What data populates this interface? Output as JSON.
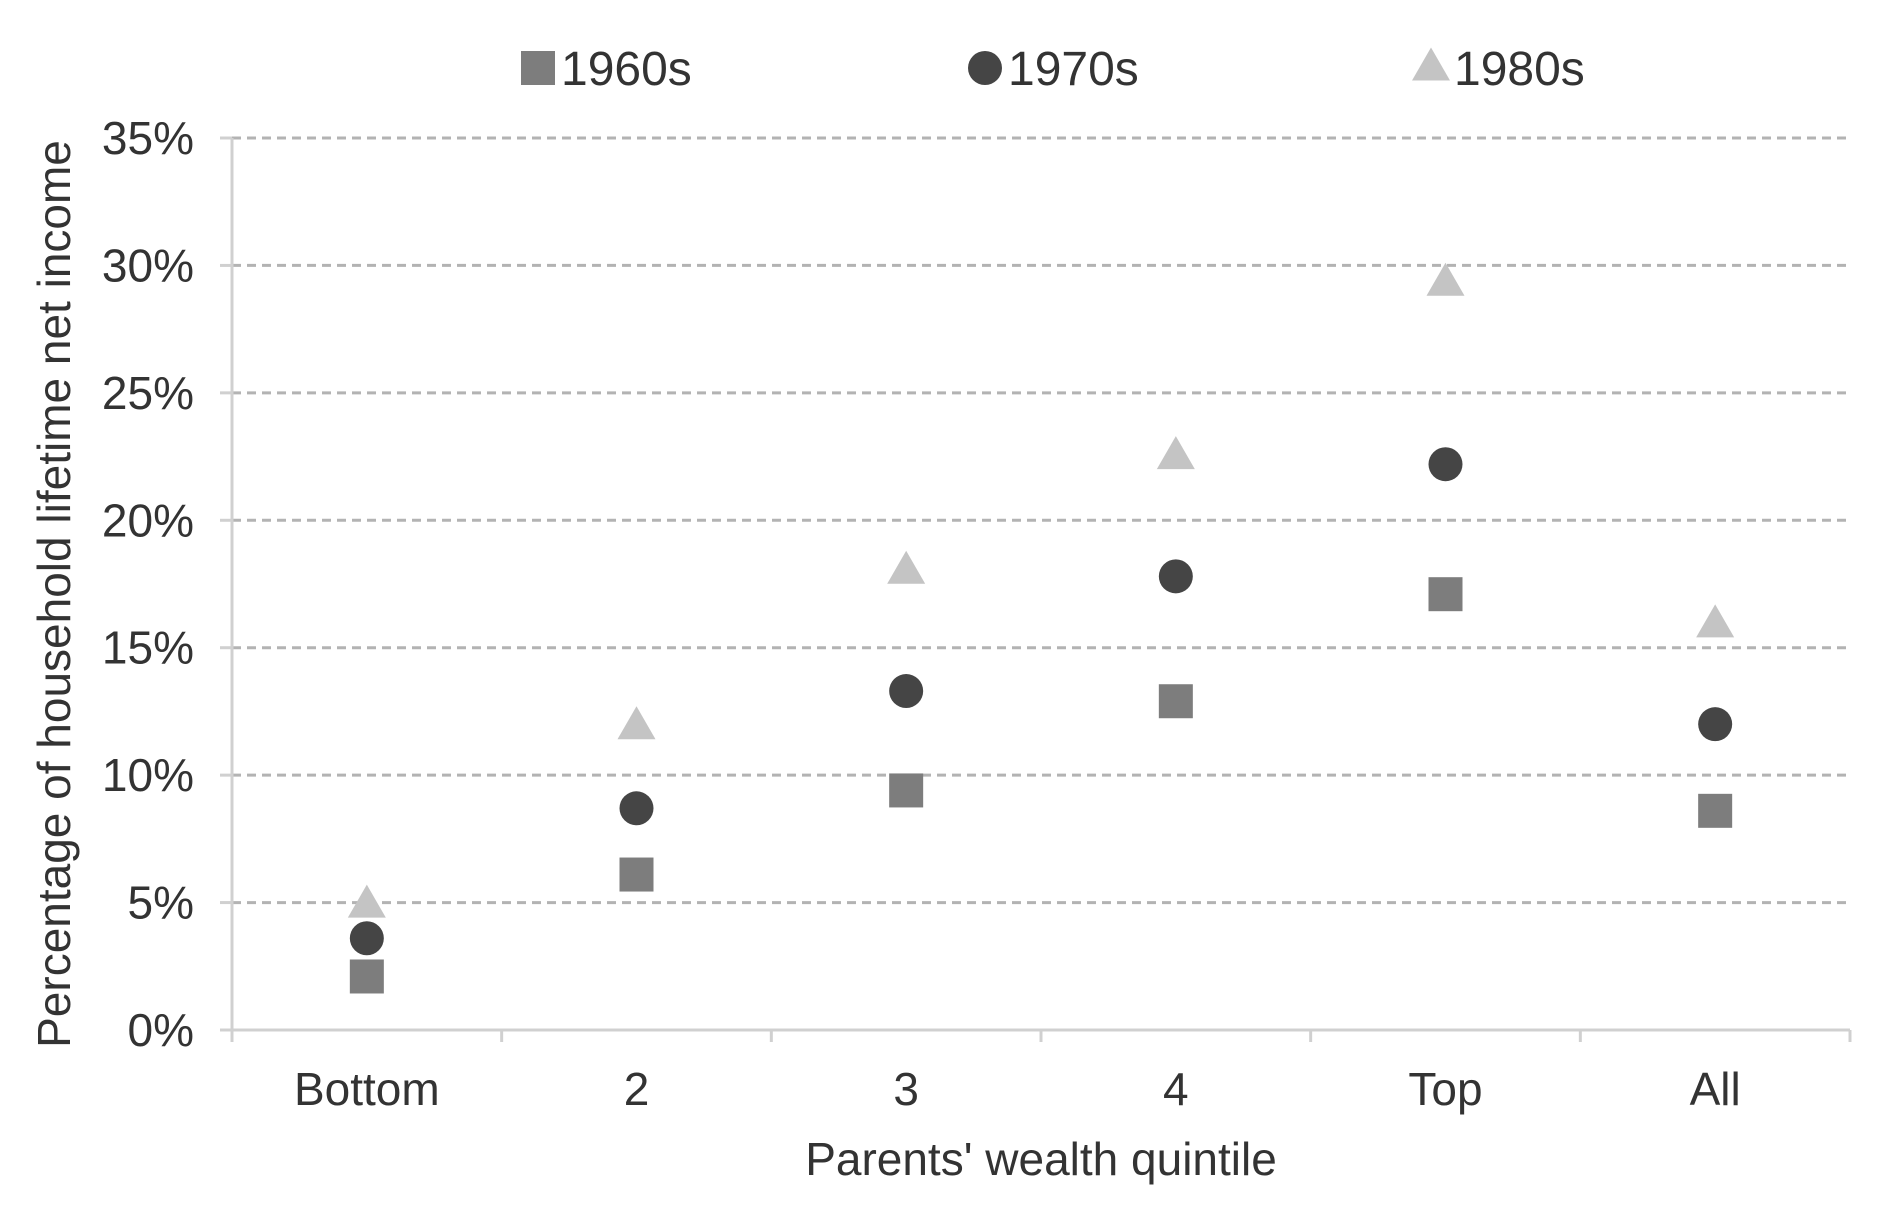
{
  "chart_data": {
    "type": "scatter",
    "xlabel": "Parents' wealth quintile",
    "ylabel": "Percentage of household lifetime net income",
    "categories": [
      "Bottom",
      "2",
      "3",
      "4",
      "Top",
      "All"
    ],
    "y_tick_labels": [
      "0%",
      "5%",
      "10%",
      "15%",
      "20%",
      "25%",
      "30%",
      "35%"
    ],
    "ylim": [
      0,
      35
    ],
    "y_unit": "percent",
    "grid": "horizontal-dashed",
    "legend_position": "top",
    "series": [
      {
        "name": "1960s",
        "marker": "square",
        "color": "#7d7d7d",
        "values": [
          2.1,
          6.1,
          9.4,
          12.9,
          17.1,
          8.6
        ]
      },
      {
        "name": "1970s",
        "marker": "circle",
        "color": "#454545",
        "values": [
          3.6,
          8.7,
          13.3,
          17.8,
          22.2,
          12.0
        ]
      },
      {
        "name": "1980s",
        "marker": "triangle",
        "color": "#c4c4c4",
        "values": [
          4.9,
          11.9,
          18.0,
          22.5,
          29.3,
          15.9
        ]
      }
    ]
  }
}
